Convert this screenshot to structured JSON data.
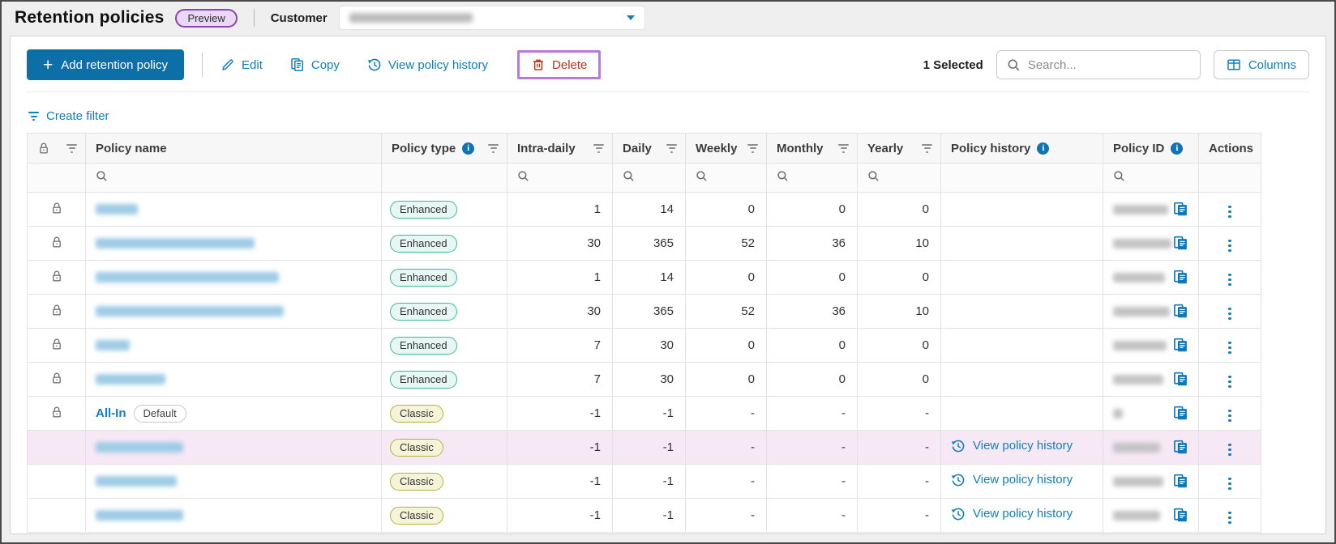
{
  "header": {
    "title": "Retention policies",
    "preview_badge": "Preview",
    "customer_label": "Customer",
    "customer_value_redacted": true
  },
  "toolbar": {
    "add_button": "Add retention policy",
    "edit": "Edit",
    "copy": "Copy",
    "view_policy_history": "View policy history",
    "delete": "Delete",
    "selected_count": "1 Selected",
    "search_placeholder": "Search...",
    "columns": "Columns"
  },
  "filters": {
    "create_filter": "Create filter"
  },
  "colors": {
    "primary_button": "#0d6fa8",
    "link_blue": "#1080bc",
    "delete_red": "#bf3015",
    "highlight_purple": "#b87ad6",
    "selected_row_bg": "#f7e8f6",
    "enhanced_badge_border": "#3ab6a0",
    "classic_badge_border": "#b5b138",
    "preview_badge_border": "#8e44ad"
  },
  "table": {
    "history_link_label": "View policy history",
    "columns": [
      {
        "label": "",
        "lock_icon": true,
        "filter_icon": true
      },
      {
        "label": "Policy name",
        "search": true
      },
      {
        "label": "Policy type",
        "info": true,
        "filter_icon": true
      },
      {
        "label": "Intra-daily",
        "filter_icon": true,
        "search": true
      },
      {
        "label": "Daily",
        "filter_icon": true,
        "search": true
      },
      {
        "label": "Weekly",
        "filter_icon": true,
        "search": true
      },
      {
        "label": "Monthly",
        "filter_icon": true,
        "search": true
      },
      {
        "label": "Yearly",
        "filter_icon": true,
        "search": true
      },
      {
        "label": "Policy history",
        "info": true
      },
      {
        "label": "Policy ID",
        "info": true,
        "search": true
      },
      {
        "label": "Actions"
      }
    ],
    "rows": [
      {
        "locked": true,
        "selected": false,
        "name_redacted": true,
        "name_blur_width": 52,
        "type": "Enhanced",
        "intra_daily": "1",
        "daily": "14",
        "weekly": "0",
        "monthly": "0",
        "yearly": "0",
        "history": false,
        "id_redacted": true,
        "id_blur_width": 68
      },
      {
        "locked": true,
        "selected": false,
        "name_redacted": true,
        "name_blur_width": 196,
        "type": "Enhanced",
        "intra_daily": "30",
        "daily": "365",
        "weekly": "52",
        "monthly": "36",
        "yearly": "10",
        "history": false,
        "id_redacted": true,
        "id_blur_width": 72
      },
      {
        "locked": true,
        "selected": false,
        "name_redacted": true,
        "name_blur_width": 226,
        "type": "Enhanced",
        "intra_daily": "1",
        "daily": "14",
        "weekly": "0",
        "monthly": "0",
        "yearly": "0",
        "history": false,
        "id_redacted": true,
        "id_blur_width": 64
      },
      {
        "locked": true,
        "selected": false,
        "name_redacted": true,
        "name_blur_width": 232,
        "type": "Enhanced",
        "intra_daily": "30",
        "daily": "365",
        "weekly": "52",
        "monthly": "36",
        "yearly": "10",
        "history": false,
        "id_redacted": true,
        "id_blur_width": 70
      },
      {
        "locked": true,
        "selected": false,
        "name_redacted": true,
        "name_blur_width": 42,
        "type": "Enhanced",
        "intra_daily": "7",
        "daily": "30",
        "weekly": "0",
        "monthly": "0",
        "yearly": "0",
        "history": false,
        "id_redacted": true,
        "id_blur_width": 66
      },
      {
        "locked": true,
        "selected": false,
        "name_redacted": true,
        "name_blur_width": 86,
        "type": "Enhanced",
        "intra_daily": "7",
        "daily": "30",
        "weekly": "0",
        "monthly": "0",
        "yearly": "0",
        "history": false,
        "id_redacted": true,
        "id_blur_width": 62
      },
      {
        "locked": true,
        "selected": false,
        "name_redacted": false,
        "name": "All-In",
        "default_badge": "Default",
        "type": "Classic",
        "intra_daily": "-1",
        "daily": "-1",
        "weekly": "-",
        "monthly": "-",
        "yearly": "-",
        "history": false,
        "id_redacted": true,
        "id_blur_width": 12
      },
      {
        "locked": false,
        "selected": true,
        "name_redacted": true,
        "name_blur_width": 108,
        "type": "Classic",
        "intra_daily": "-1",
        "daily": "-1",
        "weekly": "-",
        "monthly": "-",
        "yearly": "-",
        "history": true,
        "id_redacted": true,
        "id_blur_width": 58
      },
      {
        "locked": false,
        "selected": false,
        "name_redacted": true,
        "name_blur_width": 100,
        "type": "Classic",
        "intra_daily": "-1",
        "daily": "-1",
        "weekly": "-",
        "monthly": "-",
        "yearly": "-",
        "history": true,
        "id_redacted": true,
        "id_blur_width": 62
      },
      {
        "locked": false,
        "selected": false,
        "name_redacted": true,
        "name_blur_width": 108,
        "type": "Classic",
        "intra_daily": "-1",
        "daily": "-1",
        "weekly": "-",
        "monthly": "-",
        "yearly": "-",
        "history": true,
        "id_redacted": true,
        "id_blur_width": 58
      }
    ]
  }
}
